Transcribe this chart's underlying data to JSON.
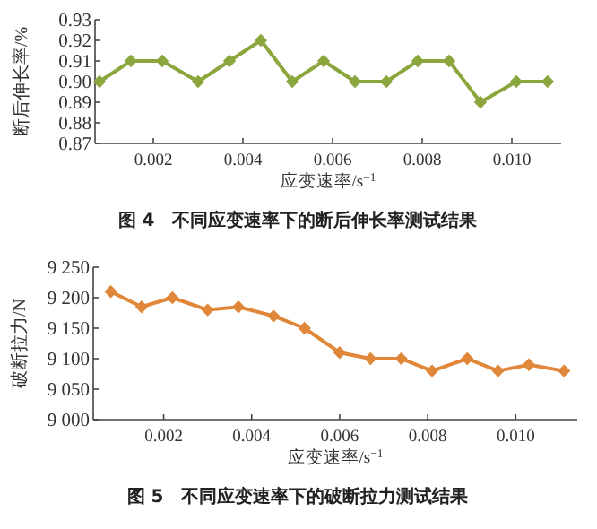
{
  "chart_data": [
    {
      "type": "line",
      "title": "图 4　不同应变速率下的断后伸长率测试结果",
      "xlabel": "应变速率/s$^{−1}$",
      "ylabel": "断后伸长率/%",
      "marker": "diamond",
      "grid": false,
      "x": [
        0.0008,
        0.0015,
        0.0022,
        0.003,
        0.0037,
        0.0044,
        0.0051,
        0.0058,
        0.0065,
        0.0072,
        0.0079,
        0.0086,
        0.0093,
        0.0101,
        0.0108
      ],
      "series": [
        {
          "color": "#8aa63c",
          "values": [
            0.9,
            0.91,
            0.91,
            0.9,
            0.91,
            0.92,
            0.9,
            0.91,
            0.9,
            0.9,
            0.91,
            0.91,
            0.89,
            0.9,
            0.9
          ]
        }
      ],
      "xlim": [
        0.0007,
        0.0111
      ],
      "xticks": [
        {
          "value": 0.002,
          "label": "0.002"
        },
        {
          "value": 0.004,
          "label": "0.004"
        },
        {
          "value": 0.006,
          "label": "0.006"
        },
        {
          "value": 0.008,
          "label": "0.008"
        },
        {
          "value": 0.01,
          "label": "0.010"
        }
      ],
      "ylim": [
        0.87,
        0.93
      ],
      "yticks": [
        0.87,
        0.88,
        0.89,
        {
          "value": 0.9,
          "label": "0.90"
        },
        0.91,
        0.92,
        0.93
      ]
    },
    {
      "type": "line",
      "title": "图 5　不同应变速率下的破断拉力测试结果",
      "xlabel": "应变速率/s$^{−1}$",
      "ylabel": "破断拉力/N",
      "marker": "diamond",
      "grid": false,
      "x": [
        0.0008,
        0.0015,
        0.0022,
        0.003,
        0.0037,
        0.0045,
        0.0052,
        0.006,
        0.0067,
        0.0074,
        0.0081,
        0.0089,
        0.0096,
        0.0103,
        0.0111
      ],
      "series": [
        {
          "color": "#e0873a",
          "values": [
            9210,
            9185,
            9200,
            9180,
            9185,
            9170,
            9150,
            9110,
            9100,
            9100,
            9080,
            9100,
            9080,
            9090,
            9080
          ]
        }
      ],
      "xlim": [
        0.0004,
        0.0114
      ],
      "xticks": [
        {
          "value": 0.002,
          "label": "0.002"
        },
        {
          "value": 0.004,
          "label": "0.004"
        },
        {
          "value": 0.006,
          "label": "0.006"
        },
        {
          "value": 0.008,
          "label": "0.008"
        },
        {
          "value": 0.01,
          "label": "0.010"
        }
      ],
      "ylim": [
        9000,
        9250
      ],
      "yticks": [
        {
          "value": 9000,
          "label": "9 000"
        },
        {
          "value": 9050,
          "label": "9 050"
        },
        {
          "value": 9100,
          "label": "9 100"
        },
        {
          "value": 9150,
          "label": "9 150"
        },
        {
          "value": 9200,
          "label": "9 200"
        },
        {
          "value": 9250,
          "label": "9 250"
        }
      ]
    }
  ]
}
